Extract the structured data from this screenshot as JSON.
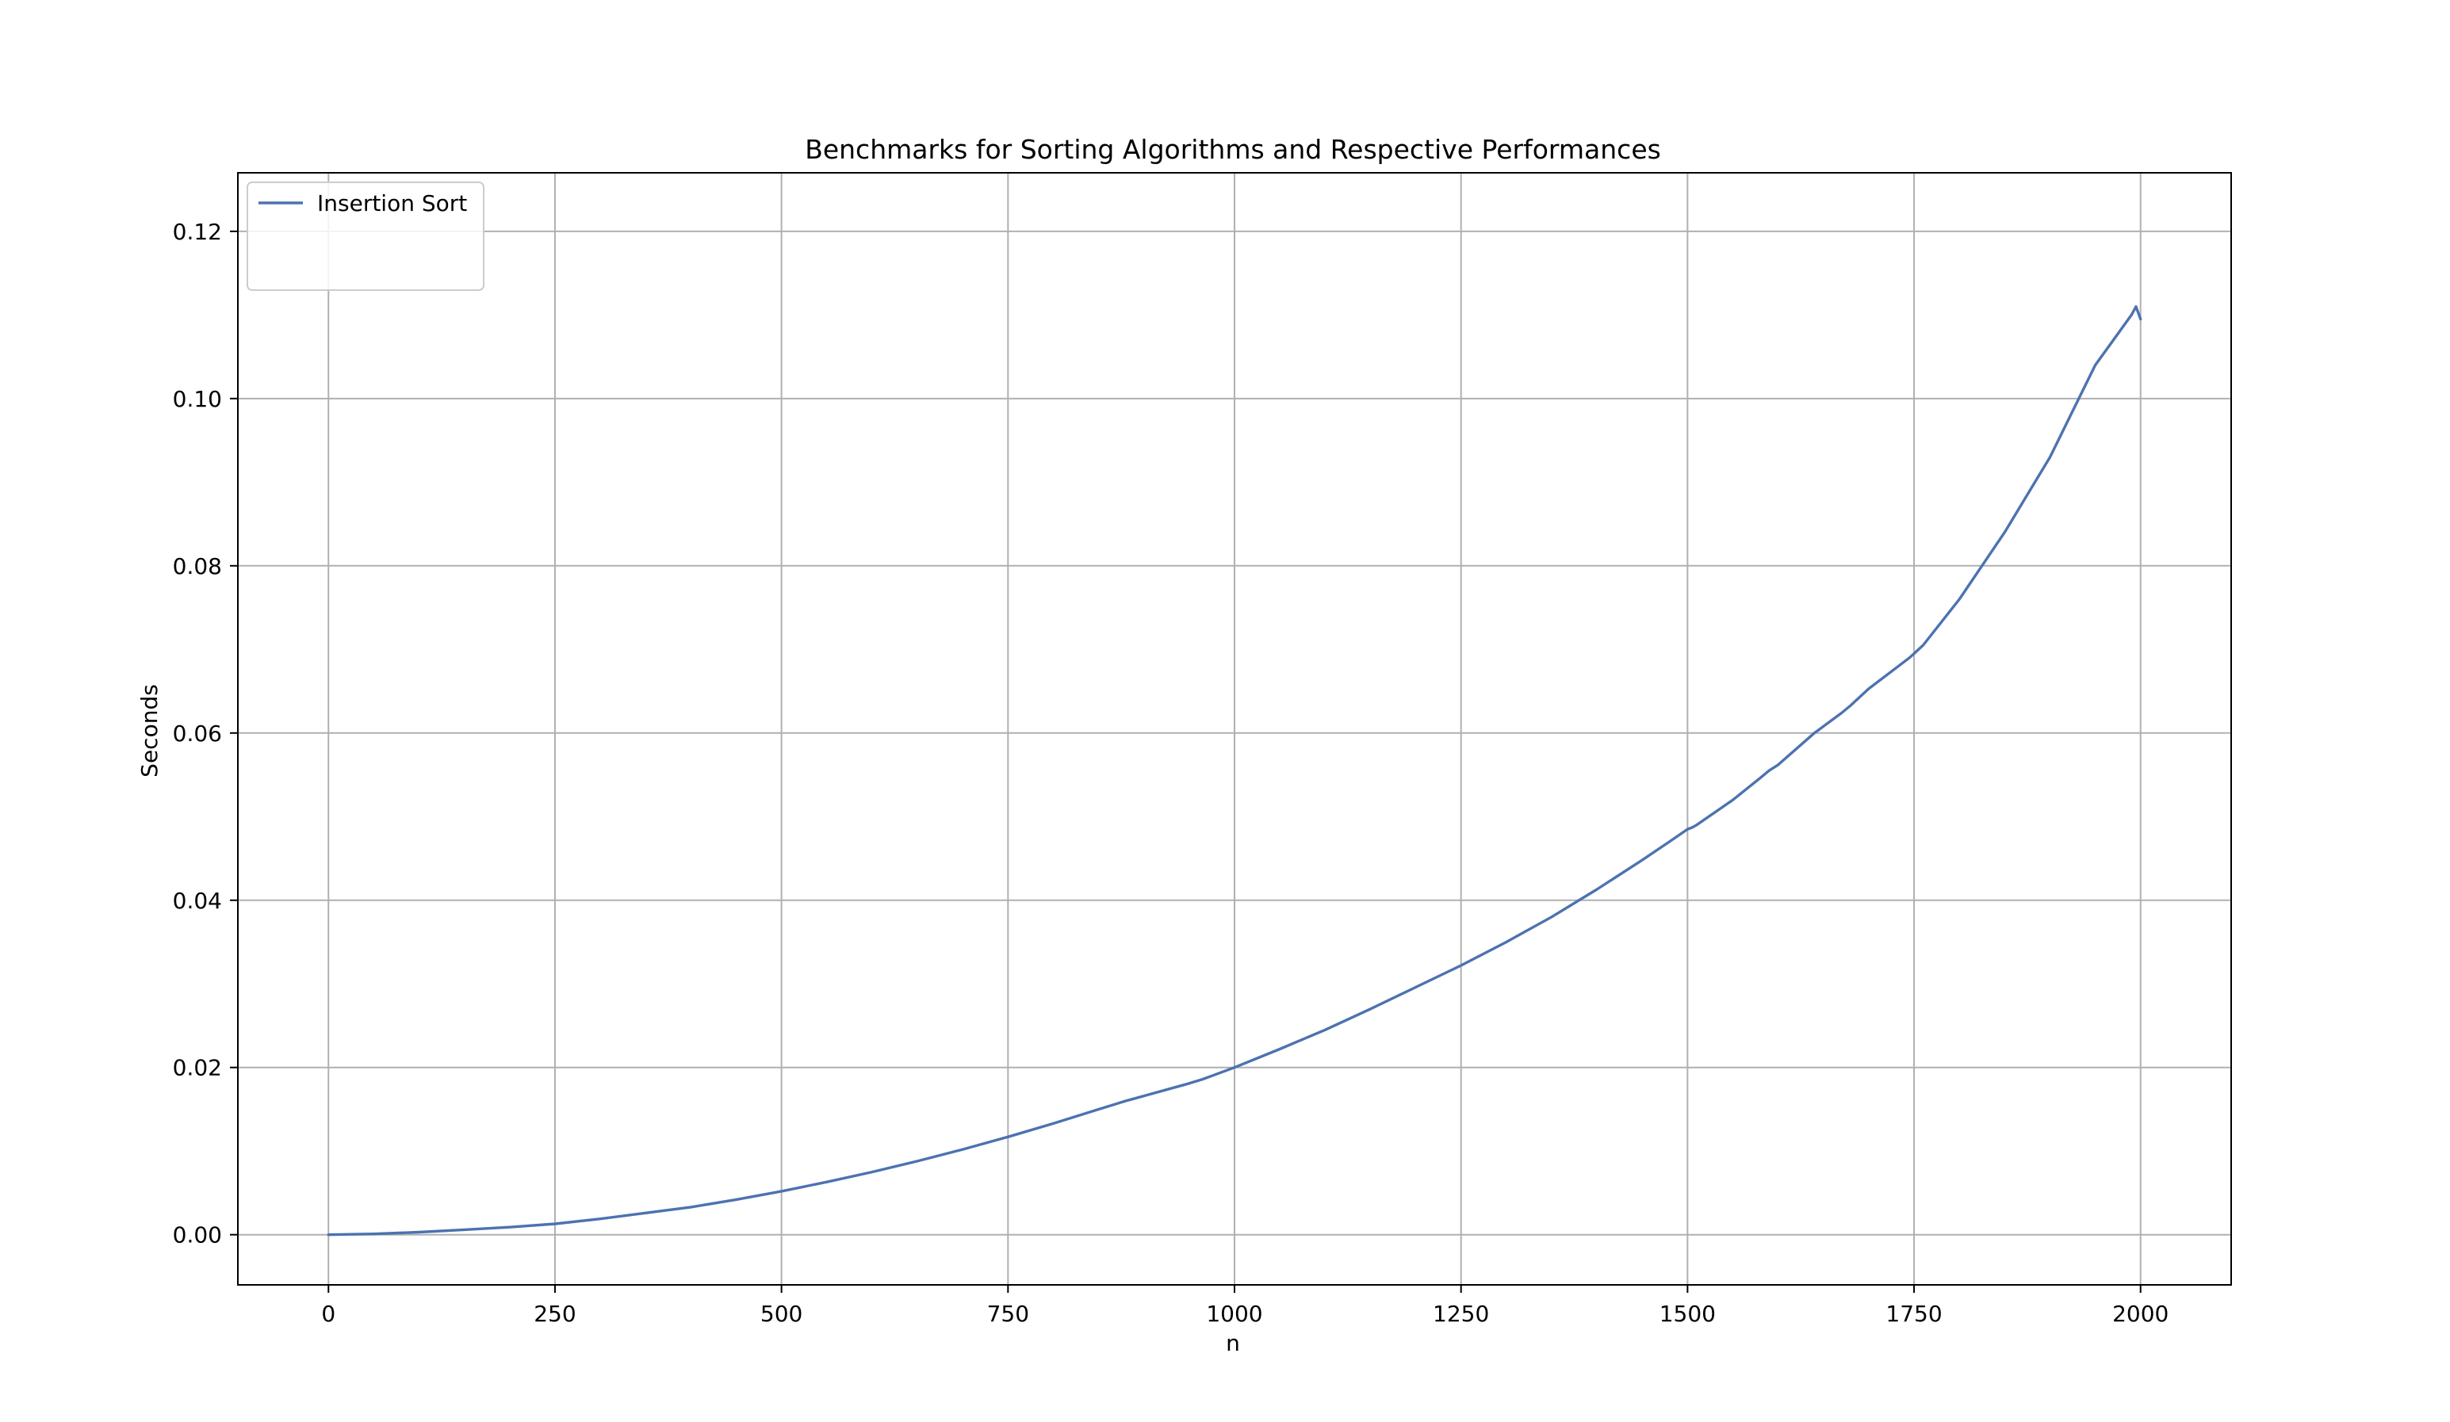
{
  "chart_data": {
    "type": "line",
    "title": "Benchmarks for Sorting Algorithms and Respective Performances",
    "xlabel": "n",
    "ylabel": "Seconds",
    "xlim": [
      -100,
      2100
    ],
    "ylim": [
      -0.006,
      0.127
    ],
    "xticks": [
      0,
      250,
      500,
      750,
      1000,
      1250,
      1500,
      1750,
      2000
    ],
    "xtick_labels": [
      "0",
      "250",
      "500",
      "750",
      "1000",
      "1250",
      "1500",
      "1750",
      "2000"
    ],
    "yticks": [
      0.0,
      0.02,
      0.04,
      0.06,
      0.08,
      0.1,
      0.12
    ],
    "ytick_labels": [
      "0.00",
      "0.02",
      "0.04",
      "0.06",
      "0.08",
      "0.10",
      "0.12"
    ],
    "grid": true,
    "legend_position": "upper-left",
    "x": [
      0,
      50,
      100,
      150,
      200,
      250,
      300,
      350,
      400,
      450,
      500,
      550,
      600,
      650,
      700,
      750,
      800,
      850,
      880,
      890,
      900,
      950,
      965,
      970,
      975,
      1000,
      1050,
      1100,
      1150,
      1200,
      1250,
      1300,
      1350,
      1400,
      1450,
      1480,
      1500,
      1505,
      1510,
      1550,
      1580,
      1590,
      1600,
      1640,
      1645,
      1650,
      1660,
      1670,
      1680,
      1690,
      1700,
      1745,
      1750,
      1755,
      1760,
      1800,
      1850,
      1900,
      1950,
      1990,
      1995,
      2000
    ],
    "series": [
      {
        "name": "Insertion Sort",
        "color": "#4c72b0",
        "values": [
          0.0,
          0.0001,
          0.0003,
          0.0006,
          0.0009,
          0.0013,
          0.0019,
          0.0026,
          0.0033,
          0.0042,
          0.0052,
          0.0063,
          0.0075,
          0.0088,
          0.0102,
          0.0117,
          0.0133,
          0.015,
          0.016,
          0.0163,
          0.0166,
          0.0181,
          0.0186,
          0.0188,
          0.019,
          0.02,
          0.0222,
          0.0245,
          0.027,
          0.0296,
          0.0322,
          0.035,
          0.038,
          0.0413,
          0.0448,
          0.047,
          0.0485,
          0.0487,
          0.049,
          0.052,
          0.0546,
          0.0555,
          0.0562,
          0.06,
          0.0604,
          0.0608,
          0.0616,
          0.0624,
          0.0633,
          0.0643,
          0.0653,
          0.069,
          0.0695,
          0.07,
          0.0705,
          0.076,
          0.084,
          0.093,
          0.104,
          0.11,
          0.111,
          0.1095
        ]
      }
    ]
  }
}
